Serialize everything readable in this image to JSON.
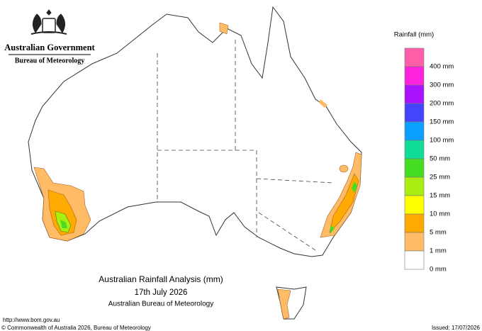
{
  "header": {
    "government": "Australian Government",
    "bureau": "Bureau of Meteorology"
  },
  "legend": {
    "title": "Rainfall (mm)",
    "items": [
      {
        "label": "400 mm",
        "color": "#ff5fa8"
      },
      {
        "label": "300 mm",
        "color": "#ff22dd"
      },
      {
        "label": "200 mm",
        "color": "#aa11ff"
      },
      {
        "label": "150 mm",
        "color": "#4444ff"
      },
      {
        "label": "100 mm",
        "color": "#0aa0ff"
      },
      {
        "label": "50 mm",
        "color": "#11dd99"
      },
      {
        "label": "25 mm",
        "color": "#44dd22"
      },
      {
        "label": "15 mm",
        "color": "#aaee11"
      },
      {
        "label": "10 mm",
        "color": "#ffff00"
      },
      {
        "label": "5 mm",
        "color": "#ffaa00"
      },
      {
        "label": "1 mm",
        "color": "#ffbb66"
      },
      {
        "label": "0 mm",
        "color": "#ffffff"
      }
    ]
  },
  "map": {
    "title": "Australian Rainfall Analysis (mm)",
    "date": "17th July 2026",
    "source": "Australian Bureau of Meteorology"
  },
  "footer": {
    "url": "http://www.bom.gov.au",
    "copyright": "© Commonwealth of Australia 2026, Bureau of Meteorology",
    "issued": "Issued: 17/07/2026"
  }
}
